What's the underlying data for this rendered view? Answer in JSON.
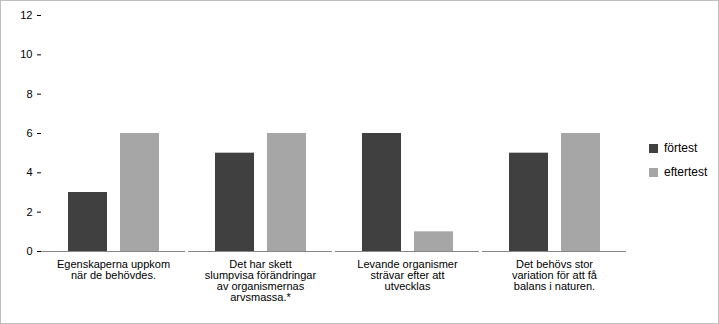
{
  "chart_data": {
    "type": "bar",
    "categories": [
      "Egenskaperna uppkom när de behövdes.",
      "Det har skett slumpvisa förändringar av organismernas arvsmassa.*",
      "Levande organismer strävar efter att utvecklas",
      "Det behövs stor variation för att få balans i naturen."
    ],
    "series": [
      {
        "name": "förtest",
        "color": "#404040",
        "values": [
          3,
          5,
          6,
          5
        ]
      },
      {
        "name": "eftertest",
        "color": "#a6a6a6",
        "values": [
          6,
          6,
          1,
          6
        ]
      }
    ],
    "ylim": [
      0,
      12
    ],
    "yticks": [
      0,
      2,
      4,
      6,
      8,
      10,
      12
    ],
    "grid": false,
    "legend": "right"
  }
}
